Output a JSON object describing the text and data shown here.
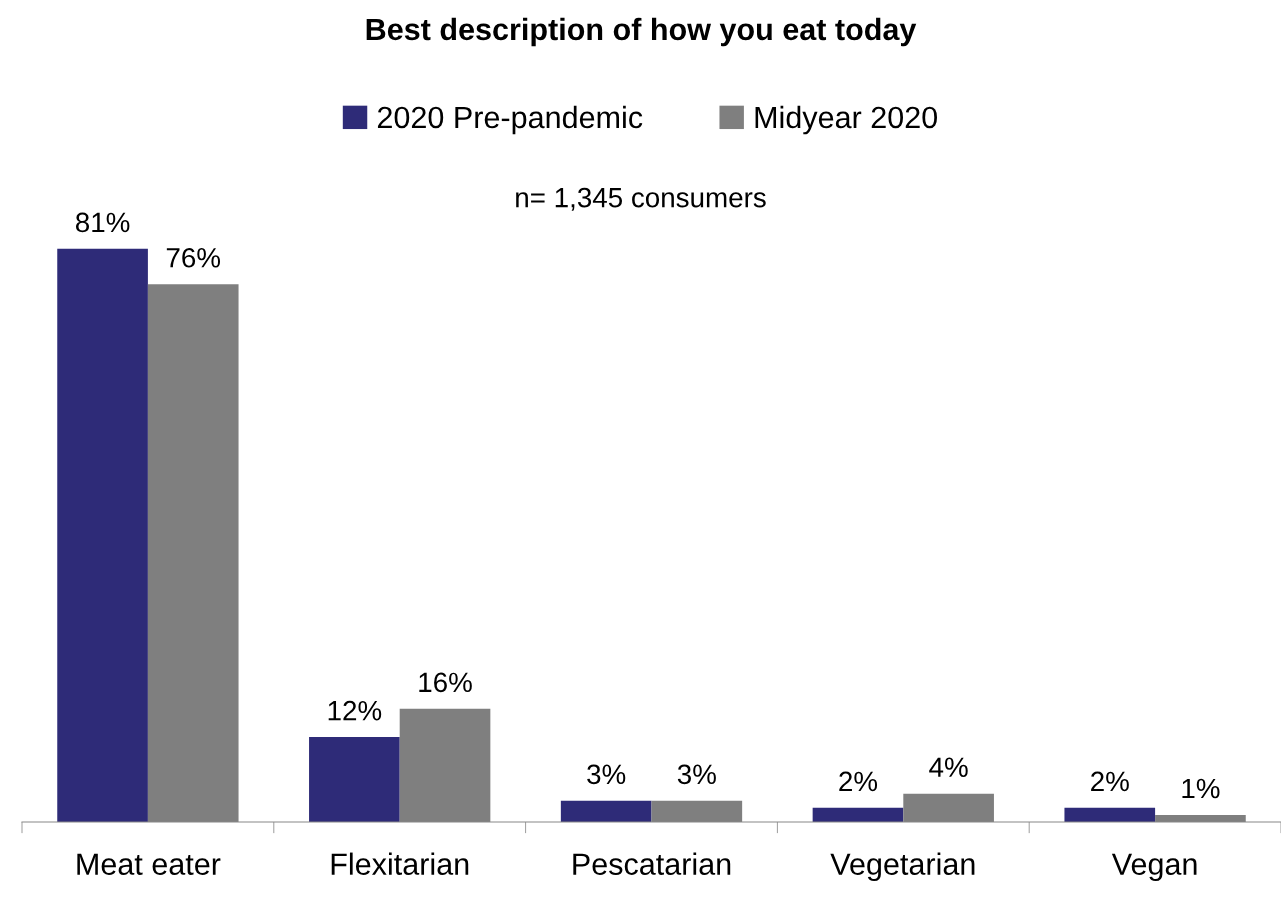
{
  "chart_data": {
    "type": "bar",
    "title": "Best description of how you eat today",
    "categories": [
      "Meat eater",
      "Flexitarian",
      "Pescatarian",
      "Vegetarian",
      "Vegan"
    ],
    "series": [
      {
        "name": "2020 Pre-pandemic",
        "color": "#2e2b78",
        "values": [
          81,
          12,
          3,
          2,
          2
        ],
        "value_labels": [
          "81%",
          "12%",
          "3%",
          "2%",
          "2%"
        ]
      },
      {
        "name": "Midyear 2020",
        "color": "#7f7f7f",
        "values": [
          76,
          16,
          3,
          4,
          1
        ],
        "value_labels": [
          "76%",
          "16%",
          "3%",
          "4%",
          "1%"
        ]
      }
    ],
    "annotations": [
      "n= 1,345 consumers"
    ],
    "legend": "top",
    "grid": false
  }
}
